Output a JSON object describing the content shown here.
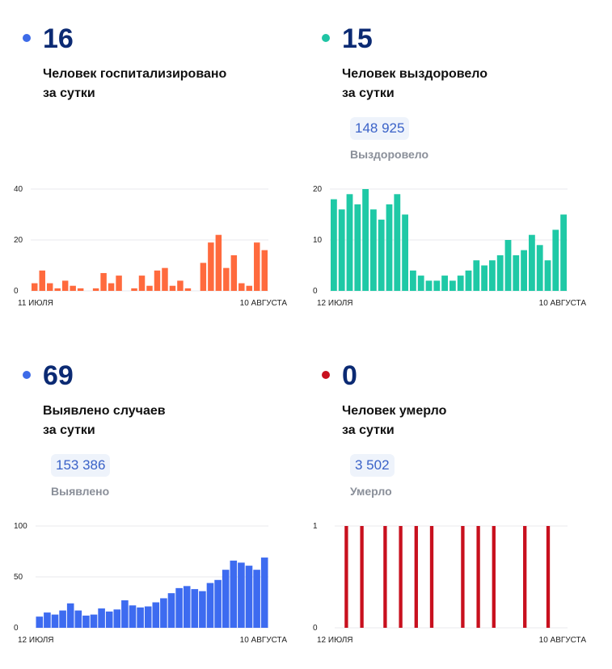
{
  "panels": [
    {
      "number": "16",
      "desc_line1": "Человек госпитализировано",
      "desc_line2": "за сутки",
      "total": null,
      "total_label": null,
      "dot_color": "#3d6be8"
    },
    {
      "number": "15",
      "desc_line1": "Человек выздоровело",
      "desc_line2": "за сутки",
      "total": "148 925",
      "total_label": "Выздоровело",
      "dot_color": "#1fc4a4"
    },
    {
      "number": "69",
      "desc_line1": "Выявлено случаев",
      "desc_line2": "за сутки",
      "total": "153 386",
      "total_label": "Выявлено",
      "dot_color": "#3d6be8"
    },
    {
      "number": "0",
      "desc_line1": "Человек умерло",
      "desc_line2": "за сутки",
      "total": "3 502",
      "total_label": "Умерло",
      "dot_color": "#c8101e"
    }
  ],
  "chart_data": [
    {
      "type": "bar",
      "color": "#ff6a3d",
      "ylim": [
        0,
        40
      ],
      "yticks": [
        0,
        20,
        40
      ],
      "x_start_label": "11 ИЮЛЯ",
      "x_end_label": "10 АВГУСТА",
      "values": [
        3,
        8,
        3,
        1,
        4,
        2,
        1,
        0,
        1,
        7,
        3,
        6,
        0,
        1,
        6,
        2,
        8,
        9,
        2,
        4,
        1,
        0,
        11,
        19,
        22,
        9,
        14,
        3,
        2,
        19,
        16
      ]
    },
    {
      "type": "bar",
      "color": "#1fc9a6",
      "ylim": [
        0,
        20
      ],
      "yticks": [
        0,
        10,
        20
      ],
      "x_start_label": "12 ИЮЛЯ",
      "x_end_label": "10 АВГУСТА",
      "values": [
        18,
        16,
        19,
        17,
        20,
        16,
        14,
        17,
        19,
        15,
        4,
        3,
        2,
        2,
        3,
        2,
        3,
        4,
        6,
        5,
        6,
        7,
        10,
        7,
        8,
        11,
        9,
        6,
        12,
        15
      ]
    },
    {
      "type": "bar",
      "color": "#3d6bf0",
      "ylim": [
        0,
        100
      ],
      "yticks": [
        0,
        50,
        100
      ],
      "x_start_label": "12 ИЮЛЯ",
      "x_end_label": "10 АВГУСТА",
      "values": [
        11,
        15,
        13,
        17,
        24,
        17,
        12,
        13,
        19,
        16,
        18,
        27,
        22,
        20,
        21,
        25,
        29,
        34,
        39,
        41,
        38,
        36,
        44,
        47,
        57,
        66,
        64,
        61,
        57,
        69
      ]
    },
    {
      "type": "bar",
      "color": "#c8101e",
      "ylim": [
        0,
        1
      ],
      "yticks": [
        0,
        1
      ],
      "x_start_label": "12 ИЮЛЯ",
      "x_end_label": "10 АВГУСТА",
      "values": [
        0,
        1,
        0,
        1,
        0,
        0,
        1,
        0,
        1,
        0,
        1,
        0,
        1,
        0,
        0,
        0,
        1,
        0,
        1,
        0,
        1,
        0,
        0,
        0,
        1,
        0,
        0,
        1,
        0,
        0
      ]
    }
  ]
}
